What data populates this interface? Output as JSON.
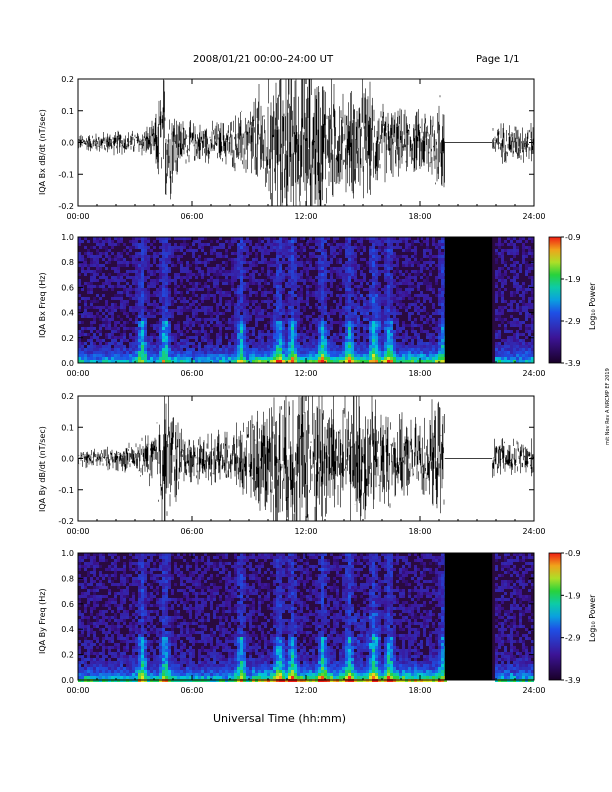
{
  "header": {
    "title": "2008/01/21  00:00–24:00 UT",
    "page": "Page 1/1"
  },
  "xlabel": "Universal Time (hh:mm)",
  "side_note": "mit Nov Rev A NRCMP EF 2019",
  "colors": {
    "trace": "#000000",
    "gap": "#000000",
    "spec_bg": "#2a0a40"
  },
  "colorbar": {
    "ticks": [
      "-0.9",
      "-1.9",
      "-2.9",
      "-3.9"
    ],
    "label": "Log₁₀ Power",
    "range": [
      -3.9,
      -0.9
    ]
  },
  "chart_data": [
    {
      "type": "line",
      "title": "2008/01/21  00:00–24:00 UT",
      "ylabel": "IQA Bx dB/dt (nT/sec)",
      "xlabel": "",
      "xticks": [
        "00:00",
        "06:00",
        "12:00",
        "18:00",
        "24:00"
      ],
      "xlim": [
        0,
        24
      ],
      "ylim": [
        -0.2,
        0.2
      ],
      "yticks": [
        "0.2",
        "0.1",
        "0.0",
        "-0.1",
        "-0.2"
      ],
      "envelope": {
        "hours": [
          0,
          1,
          2,
          3,
          4,
          4.5,
          5,
          5.5,
          6,
          7,
          8,
          9,
          10,
          11,
          12,
          13,
          14,
          15,
          16,
          17,
          18,
          19.3
        ],
        "amplitude": [
          0.02,
          0.025,
          0.03,
          0.03,
          0.05,
          0.18,
          0.12,
          0.06,
          0.05,
          0.05,
          0.06,
          0.1,
          0.18,
          0.22,
          0.22,
          0.18,
          0.12,
          0.16,
          0.1,
          0.08,
          0.08,
          0.15
        ]
      },
      "gaps": [
        [
          19.3,
          21.8
        ]
      ],
      "after_gap": {
        "hours": [
          21.8,
          24
        ],
        "amplitude": 0.05
      }
    },
    {
      "type": "heatmap",
      "ylabel": "IQA Bx Freq (Hz)",
      "xticks": [
        "00:00",
        "06:00",
        "12:00",
        "18:00",
        "24:00"
      ],
      "xlim": [
        0,
        24
      ],
      "ylim": [
        0.0,
        1.0
      ],
      "yticks": [
        "1.0",
        "0.8",
        "0.6",
        "0.4",
        "0.2",
        "0.0"
      ],
      "gaps": [
        [
          19.3,
          21.8
        ]
      ],
      "bursts_hours": [
        3.3,
        4.5,
        8.5,
        10.5,
        11.2,
        12.8,
        14.2,
        15.5,
        16.3,
        19.2
      ]
    },
    {
      "type": "line",
      "ylabel": "IQA By dB/dt (nT/sec)",
      "xticks": [
        "00:00",
        "06:00",
        "12:00",
        "18:00",
        "24:00"
      ],
      "xlim": [
        0,
        24
      ],
      "ylim": [
        -0.2,
        0.2
      ],
      "yticks": [
        "0.2",
        "0.1",
        "0.0",
        "-0.1",
        "-0.2"
      ],
      "envelope": {
        "hours": [
          0,
          1,
          2,
          3,
          4,
          4.5,
          5,
          5.5,
          6,
          7,
          8,
          9,
          10,
          11,
          12,
          13,
          14,
          15,
          16,
          17,
          18,
          19.3
        ],
        "amplitude": [
          0.02,
          0.025,
          0.03,
          0.04,
          0.08,
          0.22,
          0.15,
          0.07,
          0.06,
          0.06,
          0.07,
          0.1,
          0.16,
          0.22,
          0.22,
          0.2,
          0.16,
          0.18,
          0.14,
          0.1,
          0.1,
          0.16
        ]
      },
      "gaps": [
        [
          19.3,
          21.8
        ]
      ],
      "after_gap": {
        "hours": [
          21.8,
          24
        ],
        "amplitude": 0.05
      }
    },
    {
      "type": "heatmap",
      "ylabel": "IQA By Freq (Hz)",
      "xticks": [
        "00:00",
        "06:00",
        "12:00",
        "18:00",
        "24:00"
      ],
      "xlim": [
        0,
        24
      ],
      "ylim": [
        0.0,
        1.0
      ],
      "yticks": [
        "1.0",
        "0.8",
        "0.6",
        "0.4",
        "0.2",
        "0.0"
      ],
      "gaps": [
        [
          19.3,
          21.8
        ]
      ],
      "bursts_hours": [
        3.3,
        4.5,
        8.5,
        10.5,
        11.2,
        12.8,
        14.2,
        15.5,
        16.3,
        19.2
      ]
    }
  ]
}
